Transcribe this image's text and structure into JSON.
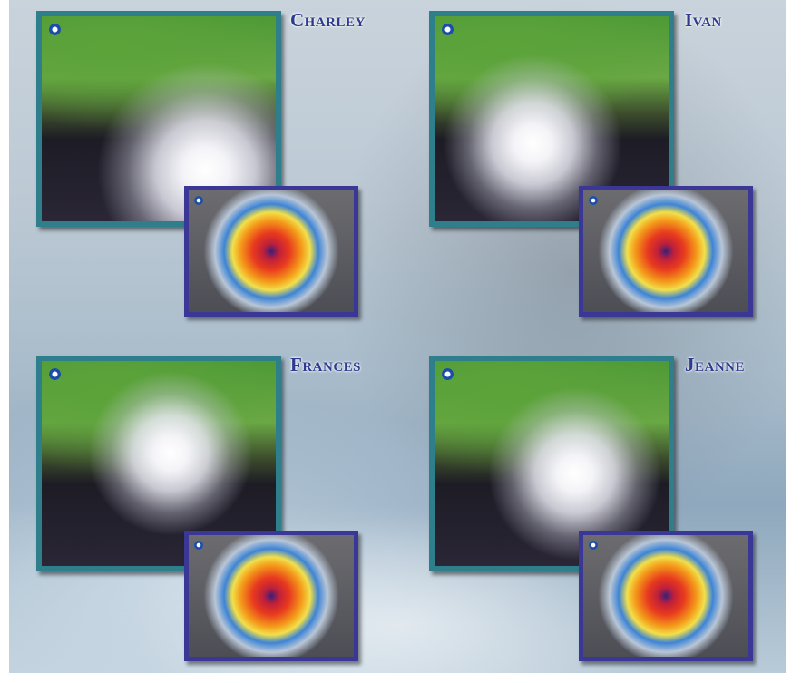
{
  "hurricanes": [
    {
      "name": "Charley"
    },
    {
      "name": "Ivan"
    },
    {
      "name": "Frances"
    },
    {
      "name": "Jeanne"
    }
  ]
}
